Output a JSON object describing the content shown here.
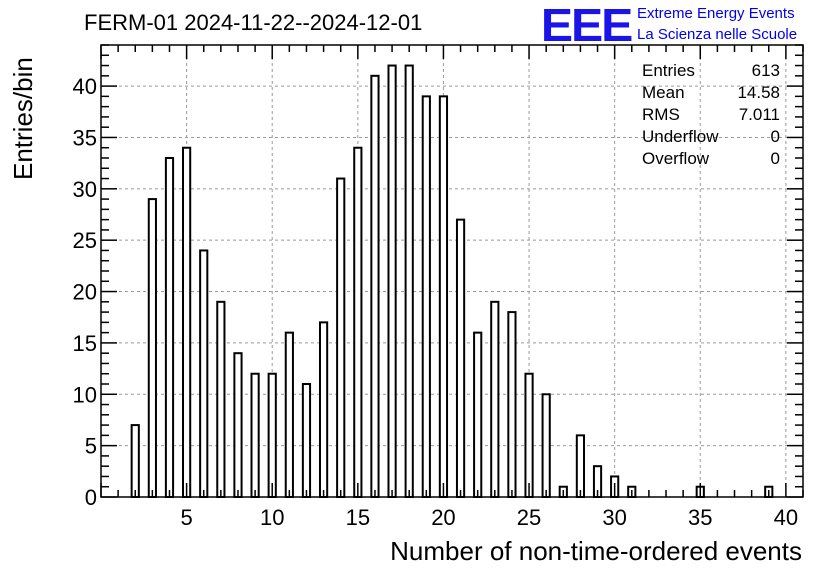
{
  "title": "FERM-01 2024-11-22--2024-12-01",
  "logo": {
    "text": "EEE",
    "line1": "Extreme Energy Events",
    "line2": "La Scienza nelle Scuole",
    "color": "#1a14e6"
  },
  "stats": [
    {
      "label": "Entries",
      "value": "613"
    },
    {
      "label": "Mean",
      "value": "14.58"
    },
    {
      "label": "RMS",
      "value": "7.011"
    },
    {
      "label": "Underflow",
      "value": "0"
    },
    {
      "label": "Overflow",
      "value": "0"
    }
  ],
  "chart_data": {
    "type": "bar",
    "title": "FERM-01 2024-11-22--2024-12-01",
    "xlabel": "Number of non-time-ordered events",
    "ylabel": "Entries/bin",
    "xlim": [
      0,
      41
    ],
    "ylim": [
      0,
      44
    ],
    "grid": true,
    "x_ticks": [
      "5",
      "10",
      "15",
      "20",
      "25",
      "30",
      "35",
      "40"
    ],
    "y_ticks": [
      "0",
      "5",
      "10",
      "15",
      "20",
      "25",
      "30",
      "35",
      "40"
    ],
    "x": [
      2,
      3,
      4,
      5,
      6,
      7,
      8,
      9,
      10,
      11,
      12,
      13,
      14,
      15,
      16,
      17,
      18,
      19,
      20,
      21,
      22,
      23,
      24,
      25,
      26,
      27,
      28,
      29,
      30,
      31,
      35,
      39
    ],
    "values": [
      7,
      29,
      33,
      34,
      24,
      19,
      14,
      12,
      12,
      16,
      11,
      17,
      31,
      34,
      41,
      42,
      42,
      39,
      39,
      27,
      16,
      19,
      18,
      12,
      10,
      1,
      6,
      3,
      2,
      1,
      1,
      1
    ]
  }
}
